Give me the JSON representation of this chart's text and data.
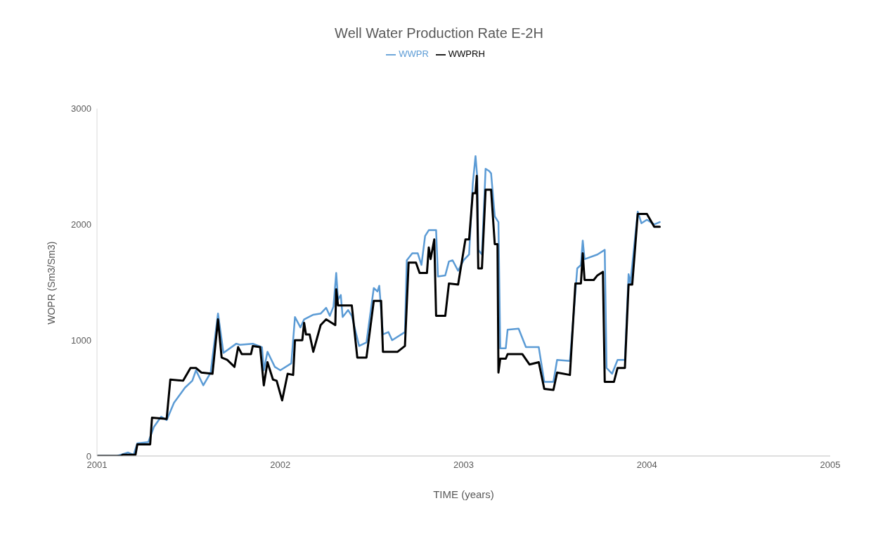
{
  "chart_data": {
    "type": "line",
    "title": "Well Water Production Rate E-2H",
    "xlabel": "TIME (years)",
    "ylabel": "WOPR (Sm3/Sm3)",
    "xlim": [
      2001,
      2005
    ],
    "xticks": [
      2001,
      2002,
      2003,
      2004,
      2005
    ],
    "ylim": [
      0,
      3000
    ],
    "yticks": [
      0,
      1000,
      2000,
      3000
    ],
    "grid": false,
    "legend": "top",
    "marker": "none",
    "line_style": "solid",
    "series": [
      {
        "name": "WWPR",
        "color": "#5b9bd5",
        "x": [
          2001.0,
          2001.11,
          2001.17,
          2001.2,
          2001.22,
          2001.28,
          2001.31,
          2001.35,
          2001.38,
          2001.42,
          2001.48,
          2001.52,
          2001.54,
          2001.58,
          2001.62,
          2001.66,
          2001.69,
          2001.76,
          2001.78,
          2001.85,
          2001.9,
          2001.91,
          2001.93,
          2001.97,
          2002.0,
          2002.06,
          2002.08,
          2002.11,
          2002.13,
          2002.18,
          2002.22,
          2002.25,
          2002.27,
          2002.29,
          2002.305,
          2002.315,
          2002.33,
          2002.34,
          2002.37,
          2002.39,
          2002.43,
          2002.47,
          2002.51,
          2002.53,
          2002.54,
          2002.56,
          2002.59,
          2002.61,
          2002.68,
          2002.69,
          2002.72,
          2002.75,
          2002.77,
          2002.79,
          2002.81,
          2002.85,
          2002.86,
          2002.9,
          2002.92,
          2002.94,
          2002.97,
          2003.0,
          2003.03,
          2003.05,
          2003.065,
          2003.075,
          2003.08,
          2003.1,
          2003.12,
          2003.14,
          2003.15,
          2003.17,
          2003.19,
          2003.2,
          2003.23,
          2003.24,
          2003.3,
          2003.34,
          2003.41,
          2003.44,
          2003.49,
          2003.51,
          2003.58,
          2003.62,
          2003.64,
          2003.65,
          2003.66,
          2003.73,
          2003.77,
          2003.78,
          2003.81,
          2003.84,
          2003.88,
          2003.9,
          2003.91,
          2003.95,
          2003.97,
          2004.0,
          2004.04,
          2004.07
        ],
        "values": [
          0,
          0,
          30,
          10,
          110,
          120,
          250,
          340,
          310,
          460,
          590,
          650,
          740,
          610,
          720,
          1230,
          890,
          970,
          960,
          970,
          940,
          740,
          900,
          770,
          740,
          800,
          1200,
          1110,
          1180,
          1220,
          1230,
          1280,
          1210,
          1290,
          1580,
          1350,
          1390,
          1200,
          1260,
          1210,
          950,
          980,
          1450,
          1420,
          1470,
          1050,
          1070,
          1000,
          1070,
          1690,
          1750,
          1750,
          1650,
          1900,
          1950,
          1950,
          1550,
          1560,
          1680,
          1690,
          1600,
          1690,
          1740,
          2350,
          2590,
          2400,
          1780,
          1740,
          2480,
          2460,
          2440,
          2070,
          2020,
          930,
          930,
          1090,
          1100,
          940,
          940,
          640,
          640,
          830,
          820,
          1620,
          1650,
          1860,
          1700,
          1740,
          1780,
          760,
          710,
          830,
          830,
          1570,
          1490,
          2110,
          2010,
          2040,
          2000,
          2020
        ]
      },
      {
        "name": "WWPRH",
        "color": "#000000",
        "x": [
          2001.0,
          2001.13,
          2001.14,
          2001.21,
          2001.22,
          2001.29,
          2001.3,
          2001.38,
          2001.4,
          2001.47,
          2001.51,
          2001.54,
          2001.57,
          2001.63,
          2001.66,
          2001.68,
          2001.71,
          2001.75,
          2001.77,
          2001.79,
          2001.84,
          2001.85,
          2001.89,
          2001.91,
          2001.93,
          2001.96,
          2001.98,
          2002.01,
          2002.04,
          2002.07,
          2002.08,
          2002.12,
          2002.13,
          2002.14,
          2002.16,
          2002.18,
          2002.22,
          2002.25,
          2002.3,
          2002.305,
          2002.315,
          2002.39,
          2002.42,
          2002.47,
          2002.51,
          2002.55,
          2002.56,
          2002.64,
          2002.68,
          2002.7,
          2002.74,
          2002.76,
          2002.8,
          2002.81,
          2002.82,
          2002.84,
          2002.85,
          2002.9,
          2002.92,
          2002.97,
          2003.01,
          2003.03,
          2003.05,
          2003.065,
          2003.072,
          2003.08,
          2003.1,
          2003.12,
          2003.15,
          2003.17,
          2003.185,
          2003.19,
          2003.2,
          2003.23,
          2003.24,
          2003.32,
          2003.36,
          2003.41,
          2003.44,
          2003.49,
          2003.51,
          2003.58,
          2003.61,
          2003.64,
          2003.65,
          2003.66,
          2003.71,
          2003.73,
          2003.76,
          2003.77,
          2003.82,
          2003.84,
          2003.88,
          2003.9,
          2003.92,
          2003.95,
          2004.0,
          2004.04,
          2004.07
        ],
        "values": [
          0,
          0,
          10,
          10,
          100,
          100,
          330,
          320,
          660,
          650,
          760,
          760,
          720,
          710,
          1180,
          850,
          830,
          770,
          940,
          880,
          880,
          950,
          940,
          610,
          810,
          660,
          650,
          480,
          710,
          700,
          1000,
          1000,
          1150,
          1050,
          1050,
          900,
          1130,
          1180,
          1130,
          1440,
          1300,
          1300,
          850,
          850,
          1340,
          1340,
          900,
          900,
          950,
          1670,
          1670,
          1580,
          1580,
          1800,
          1700,
          1870,
          1210,
          1210,
          1490,
          1480,
          1870,
          1870,
          2270,
          2270,
          2420,
          1620,
          1620,
          2300,
          2300,
          1830,
          1830,
          720,
          840,
          840,
          880,
          880,
          790,
          810,
          580,
          570,
          720,
          700,
          1490,
          1490,
          1750,
          1520,
          1520,
          1560,
          1590,
          640,
          640,
          760,
          760,
          1480,
          1480,
          2090,
          2090,
          1980,
          1980
        ]
      }
    ]
  }
}
